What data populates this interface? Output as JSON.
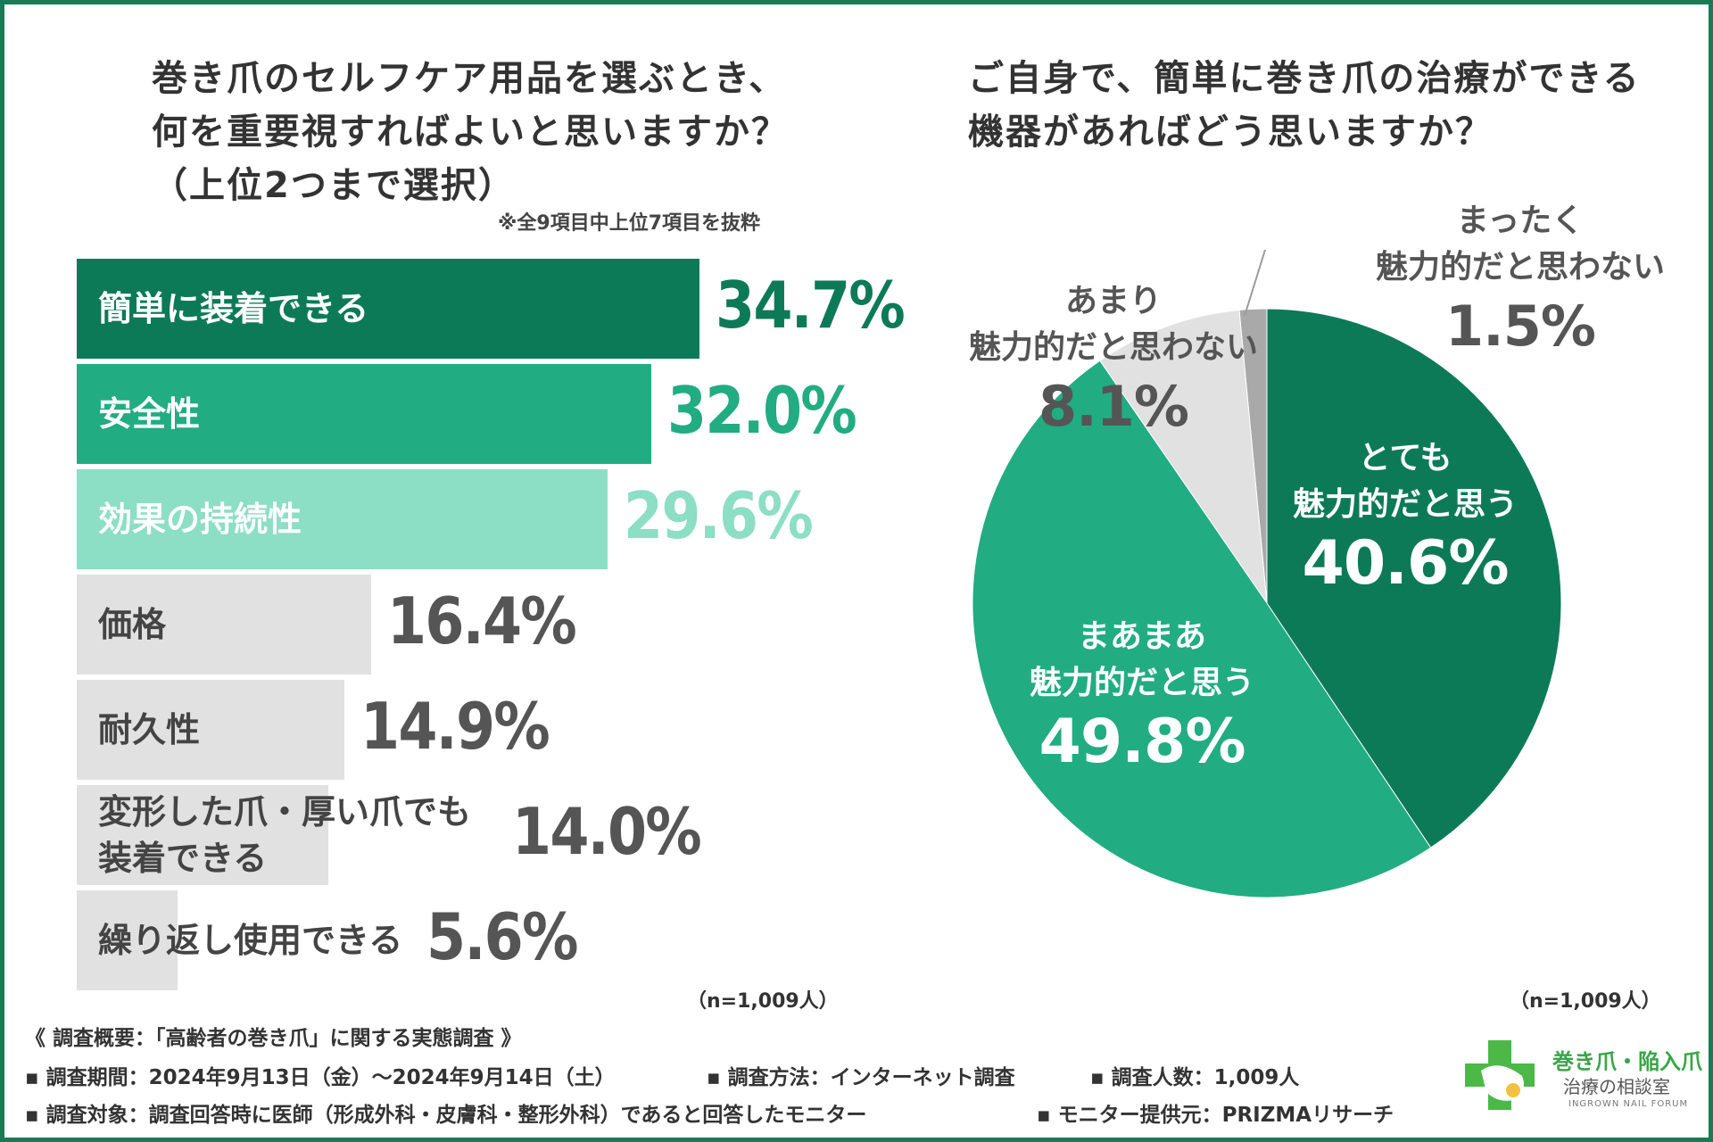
{
  "left_chart": {
    "title_lines": [
      "巻き爪のセルフケア用品を選ぶとき、",
      "何を重要視すればよいと思いますか？",
      "（上位2つまで選択）"
    ],
    "note": "※全9項目中上位7項目を抜粋",
    "n": "（n=1,009人）"
  },
  "right_chart": {
    "title_lines": [
      "ご自身で、簡単に巻き爪の治療ができる",
      "機器があればどう思いますか？"
    ],
    "n": "（n=1,009人）"
  },
  "chart_data": [
    {
      "type": "bar",
      "orientation": "horizontal",
      "title": "巻き爪のセルフケア用品を選ぶとき、何を重要視すればよいと思いますか？（上位2つまで選択）",
      "categories": [
        "簡単に装着できる",
        "安全性",
        "効果の持続性",
        "価格",
        "耐久性",
        "変形した爪・厚い爪でも装着できる",
        "繰り返し使用できる"
      ],
      "category_lines": [
        [
          "簡単に装着できる"
        ],
        [
          "安全性"
        ],
        [
          "効果の持続性"
        ],
        [
          "価格"
        ],
        [
          "耐久性"
        ],
        [
          "変形した爪・厚い爪でも",
          "装着できる"
        ],
        [
          "繰り返し使用できる"
        ]
      ],
      "values": [
        34.7,
        32.0,
        29.6,
        16.4,
        14.9,
        14.0,
        5.6
      ],
      "value_labels": [
        "34.7%",
        "32.0%",
        "29.6%",
        "16.4%",
        "14.9%",
        "14.0%",
        "5.6%"
      ],
      "colors": [
        "#0d7a57",
        "#22ac82",
        "#8cdec4",
        "#e1e1e1",
        "#e1e1e1",
        "#e1e1e1",
        "#e1e1e1"
      ],
      "label_colors": [
        "#ffffff",
        "#ffffff",
        "#ffffff",
        "#444444",
        "#444444",
        "#444444",
        "#444444"
      ],
      "value_colors": [
        "#0d7a57",
        "#22ac82",
        "#8cdec4",
        "#555555",
        "#555555",
        "#555555",
        "#555555"
      ],
      "xlim": [
        0,
        34.7
      ]
    },
    {
      "type": "pie",
      "title": "ご自身で、簡単に巻き爪の治療ができる機器があればどう思いますか？",
      "slices": [
        {
          "label_lines": [
            "とても",
            "魅力的だと思う"
          ],
          "value": 40.6,
          "value_label": "40.6%",
          "color": "#0d7a57",
          "text_color": "#ffffff"
        },
        {
          "label_lines": [
            "まあまあ",
            "魅力的だと思う"
          ],
          "value": 49.8,
          "value_label": "49.8%",
          "color": "#22ac82",
          "text_color": "#ffffff"
        },
        {
          "label_lines": [
            "あまり",
            "魅力的だと思わない"
          ],
          "value": 8.1,
          "value_label": "8.1%",
          "color": "#e1e1e1",
          "text_color": "#555555"
        },
        {
          "label_lines": [
            "まったく",
            "魅力的だと思わない"
          ],
          "value": 1.5,
          "value_label": "1.5%",
          "color": "#a9a9a9",
          "text_color": "#555555"
        }
      ],
      "start": "top",
      "direction": "clockwise"
    }
  ],
  "footer": {
    "line1": "《 調査概要：「高齢者の巻き爪」に関する実態調査 》",
    "period": "▪ 調査期間：2024年9月13日（金）〜2024年9月14日（土）",
    "method": "▪ 調査方法：インターネット調査",
    "count": "▪ 調査人数：1,009人",
    "target": "▪ 調査対象：調査回答時に医師（形成外科・皮膚科・整形外科）であると回答したモニター",
    "provider": "▪ モニター提供元：PRIZMAリサーチ"
  },
  "logo": {
    "line1": "巻き爪・陥入爪",
    "line2": "治療の相談室",
    "line3": "INGROWN NAIL FORUM"
  }
}
